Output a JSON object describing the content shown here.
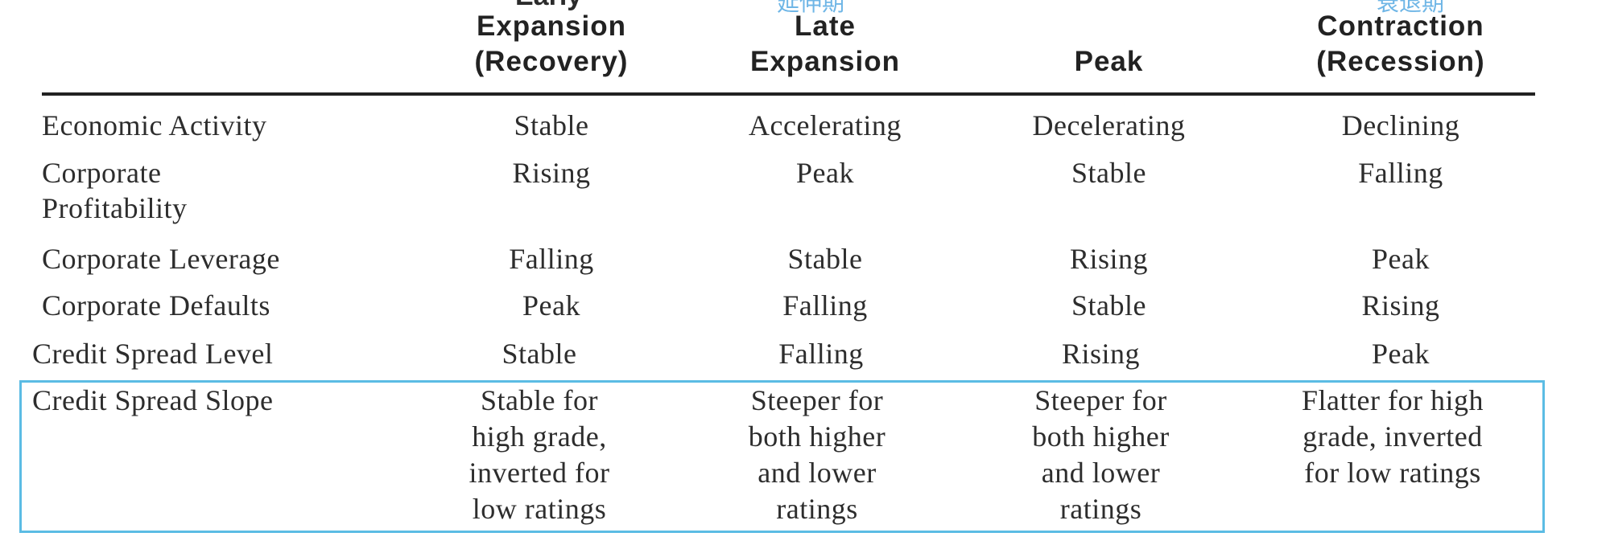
{
  "cutoff_top": {
    "col1": "Early",
    "col2": "延伸期",
    "col4": "衰退期"
  },
  "headers": [
    {
      "lines": [
        "Expansion",
        "(Recovery)"
      ]
    },
    {
      "lines": [
        "Late",
        "Expansion"
      ]
    },
    {
      "lines": [
        "Peak"
      ]
    },
    {
      "lines": [
        "Contraction",
        "(Recession)"
      ]
    }
  ],
  "rows": [
    {
      "label": [
        "Economic Activity"
      ],
      "cells": [
        [
          "Stable"
        ],
        [
          "Accelerating"
        ],
        [
          "Decelerating"
        ],
        [
          "Declining"
        ]
      ]
    },
    {
      "label": [
        "Corporate",
        "Profitability"
      ],
      "cells": [
        [
          "Rising"
        ],
        [
          "Peak"
        ],
        [
          "Stable"
        ],
        [
          "Falling"
        ]
      ]
    },
    {
      "label": [
        "Corporate Leverage"
      ],
      "cells": [
        [
          "Falling"
        ],
        [
          "Stable"
        ],
        [
          "Rising"
        ],
        [
          "Peak"
        ]
      ]
    },
    {
      "label": [
        "Corporate Defaults"
      ],
      "cells": [
        [
          "Peak"
        ],
        [
          "Falling"
        ],
        [
          "Stable"
        ],
        [
          "Rising"
        ]
      ]
    },
    {
      "label": [
        "Credit Spread Level"
      ],
      "cells": [
        [
          "Stable"
        ],
        [
          "Falling"
        ],
        [
          "Rising"
        ],
        [
          "Peak"
        ]
      ]
    },
    {
      "label": [
        "Credit Spread Slope"
      ],
      "cells": [
        [
          "Stable for",
          "high grade,",
          "inverted for",
          "low ratings"
        ],
        [
          "Steeper for",
          "both higher",
          "and lower",
          "ratings"
        ],
        [
          "Steeper for",
          "both higher",
          "and lower",
          "ratings"
        ],
        [
          "Flatter for high",
          "grade, inverted",
          "for low ratings"
        ]
      ]
    }
  ],
  "colors": {
    "highlight": "#5bbce4",
    "text": "#2d2d2d",
    "cutoff_annotation": "#6fb6e6"
  }
}
